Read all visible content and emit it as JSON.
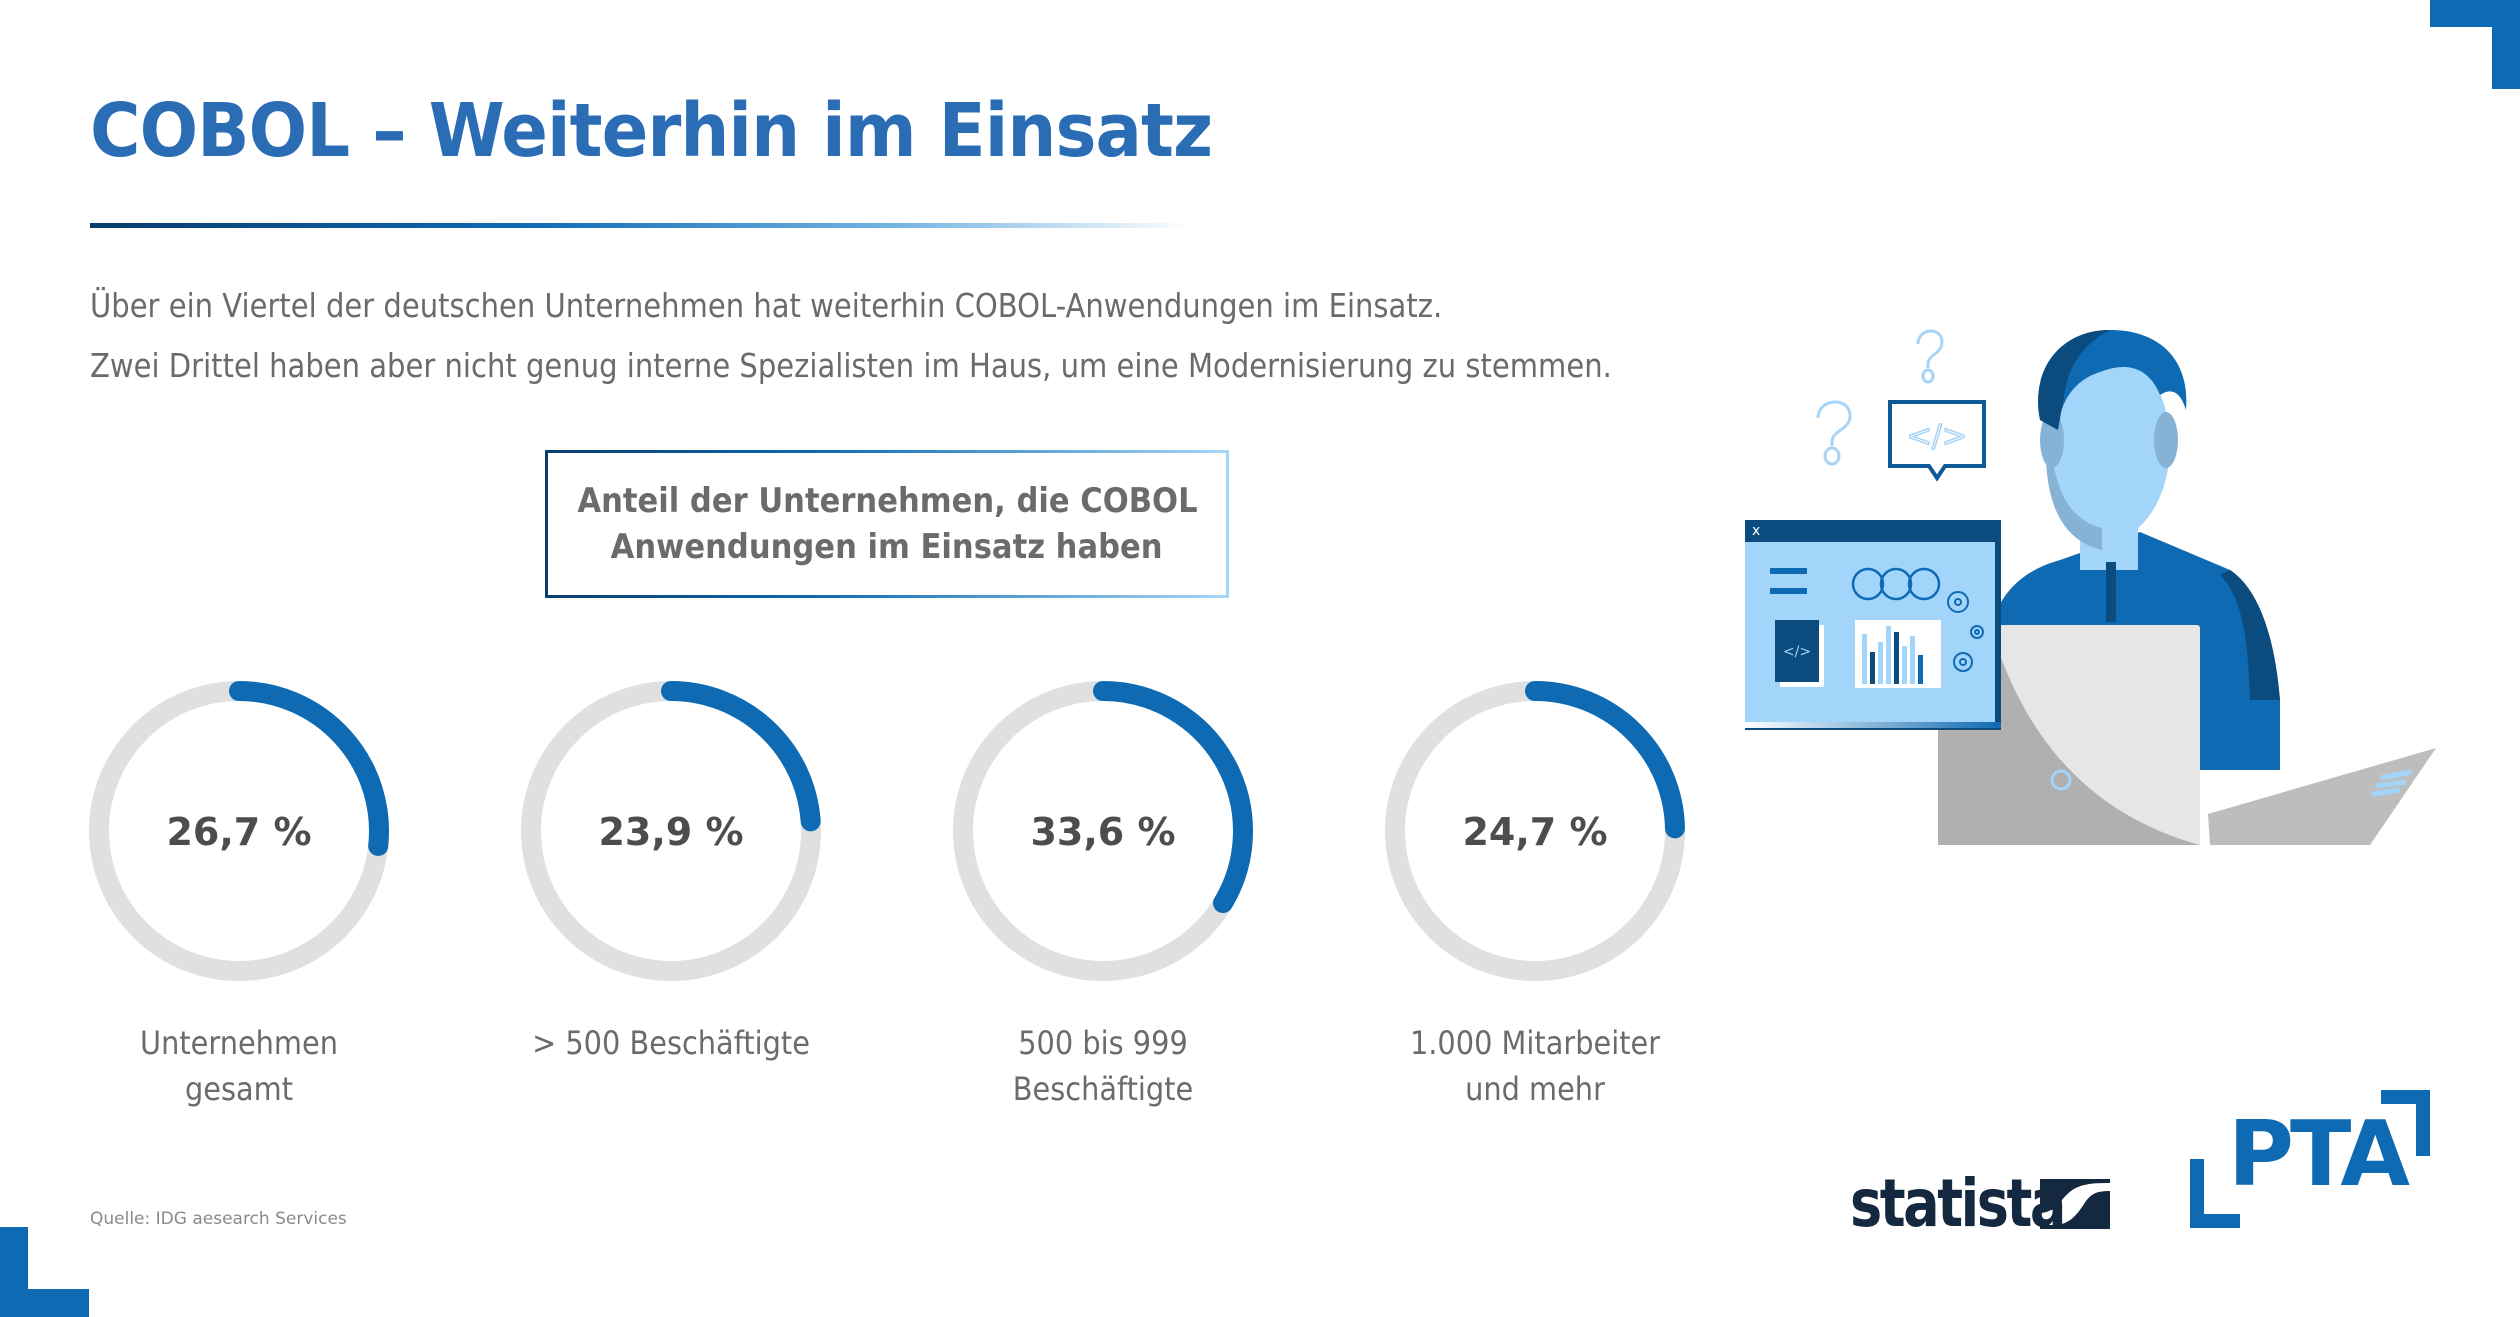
{
  "header": {
    "title": "COBOL – Weiterhin im Einsatz"
  },
  "intro": {
    "line1": "Über ein Viertel der deutschen Unternehmen hat weiterhin COBOL-Anwendungen im Einsatz.",
    "line2": "Zwei Drittel haben aber nicht genug interne Spezialisten im Haus, um eine Modernisierung zu stemmen."
  },
  "chart_box": {
    "line1": "Anteil der Unternehmen, die COBOL",
    "line2": "Anwendungen im Einsatz haben"
  },
  "chart_data": {
    "type": "pie",
    "subtype": "progress-rings",
    "title": "Anteil der Unternehmen, die COBOL Anwendungen im Einsatz haben",
    "unit": "%",
    "categories": [
      "Unternehmen gesamt",
      "> 500 Beschäftigte",
      "500 bis 999 Beschäftigte",
      "1.000 Mitarbeiter und mehr"
    ],
    "values": [
      26.7,
      23.9,
      33.6,
      24.7
    ],
    "value_labels": [
      "26,7 %",
      "23,9 %",
      "33,6 %",
      "24,7 %"
    ],
    "label_lines": [
      [
        "Unternehmen",
        "gesamt"
      ],
      [
        "> 500 Beschäftigte"
      ],
      [
        "500 bis 999",
        "Beschäftigte"
      ],
      [
        "1.000 Mitarbeiter",
        "und mehr"
      ]
    ],
    "max": 100,
    "colors": {
      "fill": "#0e6ab2",
      "track": "#e0e0e0"
    }
  },
  "footer": {
    "source": "Quelle: IDG aesearch Services",
    "logo_statista": "statista",
    "logo_pta": "PTA"
  },
  "colors": {
    "accent": "#0e6ab2",
    "title": "#2a6db5",
    "text": "#6b6b6b",
    "dark_navy": "#14283f"
  },
  "illustration": {
    "icons": [
      "question-mark-icon",
      "code-bubble-icon",
      "app-window-icon",
      "person-icon",
      "laptop-icon"
    ],
    "window_close_glyph": "x",
    "code_glyph": "</>"
  }
}
